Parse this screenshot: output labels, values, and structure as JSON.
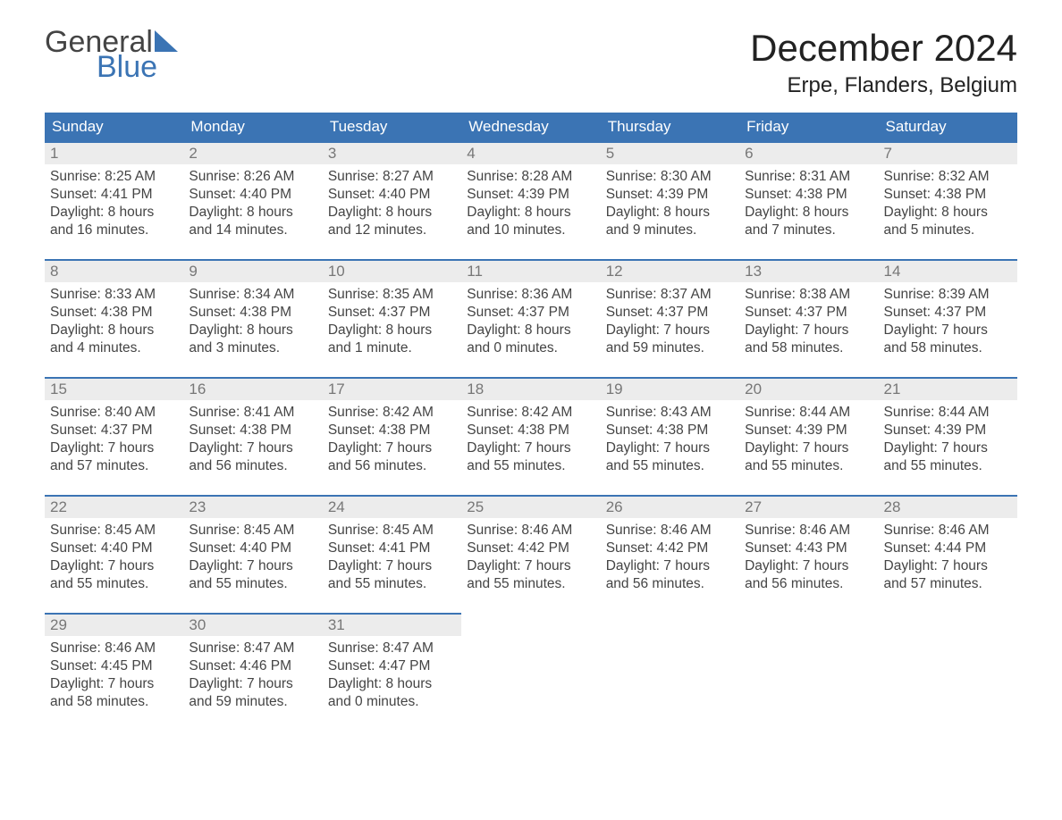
{
  "logo": {
    "word1": "General",
    "word2": "Blue"
  },
  "title": "December 2024",
  "location": "Erpe, Flanders, Belgium",
  "colors": {
    "header_bg": "#3b74b4",
    "header_text": "#ffffff",
    "daynum_bg": "#ececec",
    "daynum_topborder": "#3b74b4",
    "daynum_text": "#777777",
    "body_text": "#444444",
    "page_bg": "#ffffff"
  },
  "typography": {
    "title_fontsize_pt": 32,
    "location_fontsize_pt": 18,
    "header_fontsize_pt": 13,
    "day_fontsize_pt": 12,
    "logo_fontsize_pt": 26
  },
  "calendar": {
    "type": "table",
    "columns": [
      "Sunday",
      "Monday",
      "Tuesday",
      "Wednesday",
      "Thursday",
      "Friday",
      "Saturday"
    ],
    "weeks": [
      [
        {
          "num": "1",
          "sunrise": "Sunrise: 8:25 AM",
          "sunset": "Sunset: 4:41 PM",
          "d1": "Daylight: 8 hours",
          "d2": "and 16 minutes."
        },
        {
          "num": "2",
          "sunrise": "Sunrise: 8:26 AM",
          "sunset": "Sunset: 4:40 PM",
          "d1": "Daylight: 8 hours",
          "d2": "and 14 minutes."
        },
        {
          "num": "3",
          "sunrise": "Sunrise: 8:27 AM",
          "sunset": "Sunset: 4:40 PM",
          "d1": "Daylight: 8 hours",
          "d2": "and 12 minutes."
        },
        {
          "num": "4",
          "sunrise": "Sunrise: 8:28 AM",
          "sunset": "Sunset: 4:39 PM",
          "d1": "Daylight: 8 hours",
          "d2": "and 10 minutes."
        },
        {
          "num": "5",
          "sunrise": "Sunrise: 8:30 AM",
          "sunset": "Sunset: 4:39 PM",
          "d1": "Daylight: 8 hours",
          "d2": "and 9 minutes."
        },
        {
          "num": "6",
          "sunrise": "Sunrise: 8:31 AM",
          "sunset": "Sunset: 4:38 PM",
          "d1": "Daylight: 8 hours",
          "d2": "and 7 minutes."
        },
        {
          "num": "7",
          "sunrise": "Sunrise: 8:32 AM",
          "sunset": "Sunset: 4:38 PM",
          "d1": "Daylight: 8 hours",
          "d2": "and 5 minutes."
        }
      ],
      [
        {
          "num": "8",
          "sunrise": "Sunrise: 8:33 AM",
          "sunset": "Sunset: 4:38 PM",
          "d1": "Daylight: 8 hours",
          "d2": "and 4 minutes."
        },
        {
          "num": "9",
          "sunrise": "Sunrise: 8:34 AM",
          "sunset": "Sunset: 4:38 PM",
          "d1": "Daylight: 8 hours",
          "d2": "and 3 minutes."
        },
        {
          "num": "10",
          "sunrise": "Sunrise: 8:35 AM",
          "sunset": "Sunset: 4:37 PM",
          "d1": "Daylight: 8 hours",
          "d2": "and 1 minute."
        },
        {
          "num": "11",
          "sunrise": "Sunrise: 8:36 AM",
          "sunset": "Sunset: 4:37 PM",
          "d1": "Daylight: 8 hours",
          "d2": "and 0 minutes."
        },
        {
          "num": "12",
          "sunrise": "Sunrise: 8:37 AM",
          "sunset": "Sunset: 4:37 PM",
          "d1": "Daylight: 7 hours",
          "d2": "and 59 minutes."
        },
        {
          "num": "13",
          "sunrise": "Sunrise: 8:38 AM",
          "sunset": "Sunset: 4:37 PM",
          "d1": "Daylight: 7 hours",
          "d2": "and 58 minutes."
        },
        {
          "num": "14",
          "sunrise": "Sunrise: 8:39 AM",
          "sunset": "Sunset: 4:37 PM",
          "d1": "Daylight: 7 hours",
          "d2": "and 58 minutes."
        }
      ],
      [
        {
          "num": "15",
          "sunrise": "Sunrise: 8:40 AM",
          "sunset": "Sunset: 4:37 PM",
          "d1": "Daylight: 7 hours",
          "d2": "and 57 minutes."
        },
        {
          "num": "16",
          "sunrise": "Sunrise: 8:41 AM",
          "sunset": "Sunset: 4:38 PM",
          "d1": "Daylight: 7 hours",
          "d2": "and 56 minutes."
        },
        {
          "num": "17",
          "sunrise": "Sunrise: 8:42 AM",
          "sunset": "Sunset: 4:38 PM",
          "d1": "Daylight: 7 hours",
          "d2": "and 56 minutes."
        },
        {
          "num": "18",
          "sunrise": "Sunrise: 8:42 AM",
          "sunset": "Sunset: 4:38 PM",
          "d1": "Daylight: 7 hours",
          "d2": "and 55 minutes."
        },
        {
          "num": "19",
          "sunrise": "Sunrise: 8:43 AM",
          "sunset": "Sunset: 4:38 PM",
          "d1": "Daylight: 7 hours",
          "d2": "and 55 minutes."
        },
        {
          "num": "20",
          "sunrise": "Sunrise: 8:44 AM",
          "sunset": "Sunset: 4:39 PM",
          "d1": "Daylight: 7 hours",
          "d2": "and 55 minutes."
        },
        {
          "num": "21",
          "sunrise": "Sunrise: 8:44 AM",
          "sunset": "Sunset: 4:39 PM",
          "d1": "Daylight: 7 hours",
          "d2": "and 55 minutes."
        }
      ],
      [
        {
          "num": "22",
          "sunrise": "Sunrise: 8:45 AM",
          "sunset": "Sunset: 4:40 PM",
          "d1": "Daylight: 7 hours",
          "d2": "and 55 minutes."
        },
        {
          "num": "23",
          "sunrise": "Sunrise: 8:45 AM",
          "sunset": "Sunset: 4:40 PM",
          "d1": "Daylight: 7 hours",
          "d2": "and 55 minutes."
        },
        {
          "num": "24",
          "sunrise": "Sunrise: 8:45 AM",
          "sunset": "Sunset: 4:41 PM",
          "d1": "Daylight: 7 hours",
          "d2": "and 55 minutes."
        },
        {
          "num": "25",
          "sunrise": "Sunrise: 8:46 AM",
          "sunset": "Sunset: 4:42 PM",
          "d1": "Daylight: 7 hours",
          "d2": "and 55 minutes."
        },
        {
          "num": "26",
          "sunrise": "Sunrise: 8:46 AM",
          "sunset": "Sunset: 4:42 PM",
          "d1": "Daylight: 7 hours",
          "d2": "and 56 minutes."
        },
        {
          "num": "27",
          "sunrise": "Sunrise: 8:46 AM",
          "sunset": "Sunset: 4:43 PM",
          "d1": "Daylight: 7 hours",
          "d2": "and 56 minutes."
        },
        {
          "num": "28",
          "sunrise": "Sunrise: 8:46 AM",
          "sunset": "Sunset: 4:44 PM",
          "d1": "Daylight: 7 hours",
          "d2": "and 57 minutes."
        }
      ],
      [
        {
          "num": "29",
          "sunrise": "Sunrise: 8:46 AM",
          "sunset": "Sunset: 4:45 PM",
          "d1": "Daylight: 7 hours",
          "d2": "and 58 minutes."
        },
        {
          "num": "30",
          "sunrise": "Sunrise: 8:47 AM",
          "sunset": "Sunset: 4:46 PM",
          "d1": "Daylight: 7 hours",
          "d2": "and 59 minutes."
        },
        {
          "num": "31",
          "sunrise": "Sunrise: 8:47 AM",
          "sunset": "Sunset: 4:47 PM",
          "d1": "Daylight: 8 hours",
          "d2": "and 0 minutes."
        },
        null,
        null,
        null,
        null
      ]
    ]
  }
}
